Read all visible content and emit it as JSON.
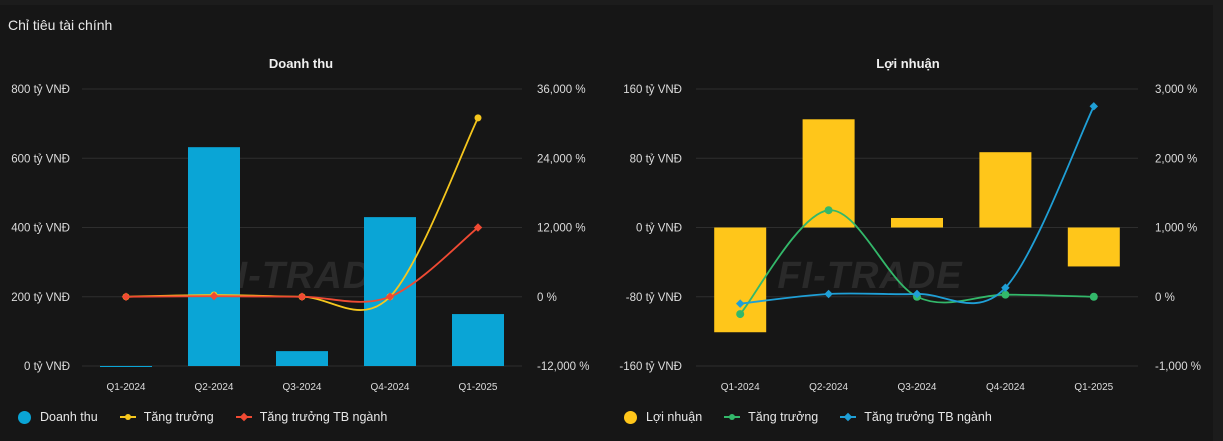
{
  "heading": "Chỉ tiêu tài chính",
  "watermark": "FI-TRADE",
  "colors": {
    "bar_revenue": "#0aa5d6",
    "bar_profit": "#ffc61a",
    "growth_yellow": "#f5c61d",
    "industry_red": "#f04a33",
    "growth_green": "#33b86a",
    "industry_blue": "#1f9fd6"
  },
  "chart_data": [
    {
      "type": "bar",
      "title": "Doanh thu",
      "categories": [
        "Q1-2024",
        "Q2-2024",
        "Q3-2024",
        "Q4-2024",
        "Q1-2025"
      ],
      "ylim": [
        0,
        800
      ],
      "y_ticks": [
        "0 tỷ VNĐ",
        "200 tỷ VNĐ",
        "400 tỷ VNĐ",
        "600 tỷ VNĐ",
        "800 tỷ VNĐ"
      ],
      "y2lim": [
        -12000,
        36000
      ],
      "y2_ticks": [
        "-12,000 %",
        "0 %",
        "12,000 %",
        "24,000 %",
        "36,000 %"
      ],
      "series": [
        {
          "name": "Doanh thu",
          "kind": "bar",
          "axis": "left",
          "values": [
            0,
            632,
            43,
            430,
            150
          ]
        },
        {
          "name": "Tăng trưởng",
          "kind": "line",
          "axis": "right",
          "values": [
            0,
            300,
            0,
            0,
            31000
          ]
        },
        {
          "name": "Tăng trưởng TB ngành",
          "kind": "line",
          "axis": "right",
          "values": [
            0,
            100,
            0,
            0,
            12000
          ]
        }
      ]
    },
    {
      "type": "bar",
      "title": "Lợi nhuận",
      "categories": [
        "Q1-2024",
        "Q2-2024",
        "Q3-2024",
        "Q4-2024",
        "Q1-2025"
      ],
      "ylim": [
        -160,
        160
      ],
      "y_ticks": [
        "-160 tỷ VNĐ",
        "-80 tỷ VNĐ",
        "0 tỷ VNĐ",
        "80 tỷ VNĐ",
        "160 tỷ VNĐ"
      ],
      "y2lim": [
        -1000,
        3000
      ],
      "y2_ticks": [
        "-1,000 %",
        "0 %",
        "1,000 %",
        "2,000 %",
        "3,000 %"
      ],
      "series": [
        {
          "name": "Lợi nhuận",
          "kind": "bar",
          "axis": "left",
          "values": [
            -121,
            125,
            11,
            87,
            -45
          ]
        },
        {
          "name": "Tăng trưởng",
          "kind": "line",
          "axis": "right",
          "values": [
            -250,
            1250,
            0,
            30,
            0
          ]
        },
        {
          "name": "Tăng trưởng TB ngành",
          "kind": "line",
          "axis": "right",
          "values": [
            -100,
            40,
            40,
            130,
            2750
          ]
        }
      ]
    }
  ]
}
